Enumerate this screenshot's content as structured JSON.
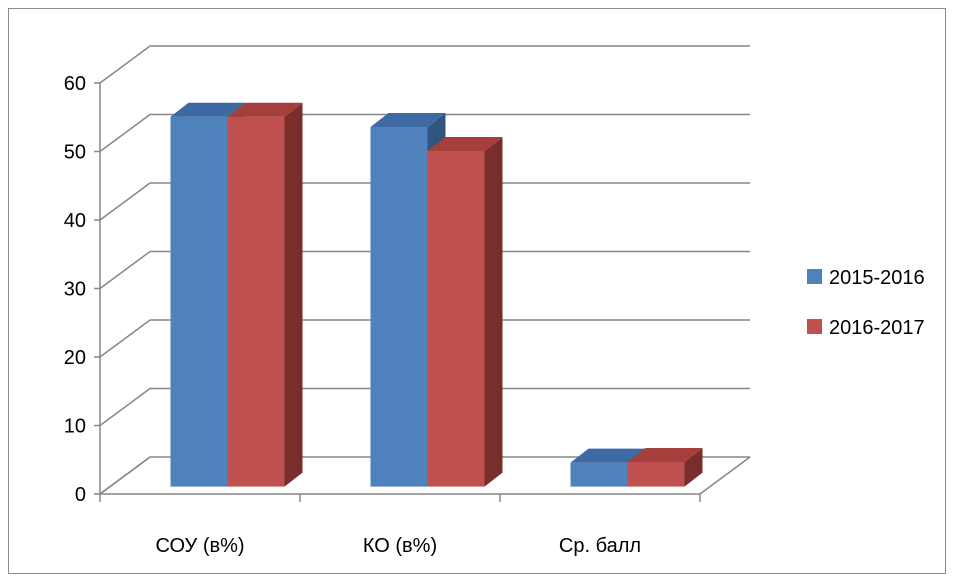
{
  "chart_data": {
    "type": "bar",
    "categories": [
      "СОУ (в%)",
      "КО (в%)",
      "Ср. балл"
    ],
    "series": [
      {
        "name": "2015-2016",
        "values": [
          54,
          52.5,
          3.5
        ],
        "color": "#4f81bd",
        "top_color": "#3d6aa3",
        "side_color": "#2f5580"
      },
      {
        "name": "2016-2017",
        "values": [
          54,
          49,
          3.6
        ],
        "color": "#c0504d",
        "top_color": "#a53f3c",
        "side_color": "#7a2e2c"
      }
    ],
    "y_ticks": [
      "0",
      "10",
      "20",
      "30",
      "40",
      "50",
      "60"
    ],
    "ylim": [
      0,
      60
    ],
    "grid": true,
    "legend_position": "right",
    "title": "",
    "xlabel": "",
    "ylabel": ""
  }
}
